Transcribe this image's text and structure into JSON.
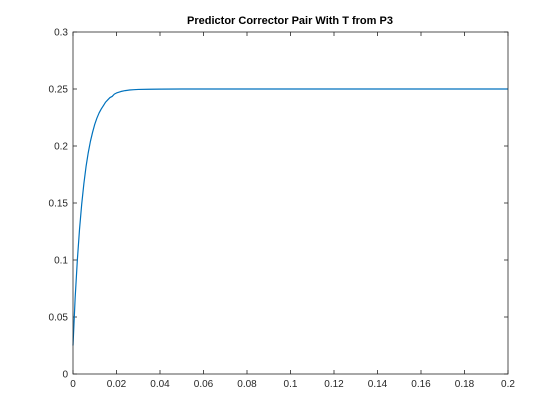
{
  "chart_data": {
    "type": "line",
    "title": "Predictor Corrector Pair With T from P3",
    "xlabel": "",
    "ylabel": "",
    "xlim": [
      0,
      0.2
    ],
    "ylim": [
      0,
      0.3
    ],
    "x_ticks": [
      0,
      0.02,
      0.04,
      0.06,
      0.08,
      0.1,
      0.12,
      0.14,
      0.16,
      0.18,
      0.2
    ],
    "x_tick_labels": [
      "0",
      "0.02",
      "0.04",
      "0.06",
      "0.08",
      "0.1",
      "0.12",
      "0.14",
      "0.16",
      "0.18",
      "0.2"
    ],
    "y_ticks": [
      0,
      0.05,
      0.1,
      0.15,
      0.2,
      0.25,
      0.3
    ],
    "y_tick_labels": [
      "0",
      "0.05",
      "0.1",
      "0.15",
      "0.2",
      "0.25",
      "0.3"
    ],
    "grid": false,
    "box": true,
    "series": [
      {
        "color": "#0072BD",
        "x": [
          0,
          0.001,
          0.002,
          0.003,
          0.004,
          0.005,
          0.006,
          0.007,
          0.008,
          0.009,
          0.01,
          0.011,
          0.012,
          0.013,
          0.014,
          0.015,
          0.016,
          0.017,
          0.018,
          0.019,
          0.02,
          0.022,
          0.024,
          0.026,
          0.028,
          0.03,
          0.035,
          0.04,
          0.05,
          0.06,
          0.08,
          0.1,
          0.12,
          0.14,
          0.16,
          0.18,
          0.2
        ],
        "y": [
          0.025,
          0.067,
          0.1,
          0.127,
          0.149,
          0.167,
          0.182,
          0.194,
          0.204,
          0.212,
          0.219,
          0.2245,
          0.229,
          0.2325,
          0.2355,
          0.2385,
          0.2405,
          0.2425,
          0.2435,
          0.2455,
          0.2465,
          0.2478,
          0.2486,
          0.2491,
          0.2494,
          0.2496,
          0.2498,
          0.2499,
          0.25,
          0.25,
          0.25,
          0.25,
          0.25,
          0.25,
          0.25,
          0.25,
          0.25
        ]
      }
    ]
  }
}
